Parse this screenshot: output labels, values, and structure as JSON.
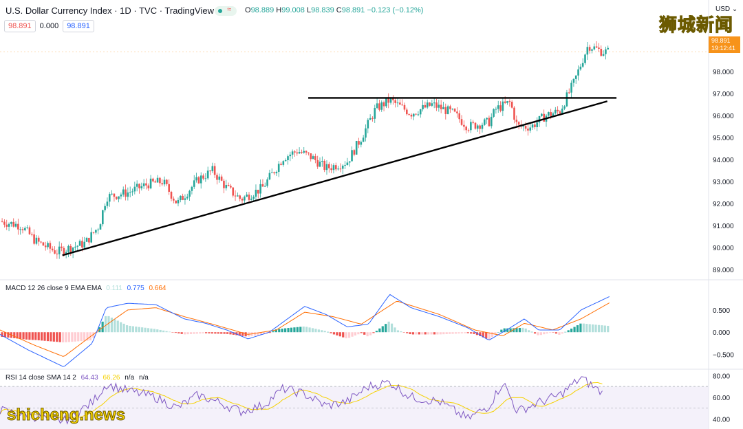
{
  "header": {
    "title": "U.S. Dollar Currency Index · 1D · TVC · TradingView",
    "ohlc": {
      "o_label": "O",
      "o": "98.889",
      "h_label": "H",
      "h": "99.008",
      "l_label": "L",
      "l": "98.839",
      "c_label": "C",
      "c": "98.891",
      "change": "−0.123 (−0.12%)"
    },
    "chips": {
      "bid": "98.891",
      "spread": "0.000",
      "ask": "98.891"
    },
    "currency": "USD",
    "price_tag": {
      "price": "98.891",
      "countdown": "19:12:41"
    }
  },
  "watermarks": {
    "top_right": "狮城新闻",
    "bottom_left": "shicheng.news"
  },
  "macd_label": {
    "name": "MACD 12 26 close 9 EMA EMA",
    "hist": "0.111",
    "macd": "0.775",
    "signal": "0.664"
  },
  "rsi_label": {
    "name": "RSI 14 close SMA 14 2",
    "rsi": "64.43",
    "sma": "66.26",
    "na1": "n/a",
    "na2": "n/a"
  },
  "colors": {
    "up": "#26a69a",
    "down": "#ef5350",
    "macd": "#2962ff",
    "signal": "#ff6d00",
    "rsi": "#7e57c2",
    "rsi_sma": "#f5d100",
    "price_tag": "#f7931a"
  },
  "chart_data": [
    {
      "type": "candlestick",
      "price_axis": {
        "ticks": [
          "98.000",
          "97.000",
          "96.000",
          "95.000",
          "94.000",
          "93.000",
          "92.000",
          "91.000",
          "90.000",
          "89.000"
        ],
        "range": [
          88.6,
          100.0
        ]
      },
      "drawn_lines": [
        {
          "kind": "horizontal resistance",
          "from": [
            0.435,
            96.8
          ],
          "to": [
            0.87,
            96.8
          ]
        },
        {
          "kind": "rising support",
          "from": [
            0.088,
            89.65
          ],
          "to": [
            0.857,
            96.65
          ]
        }
      ],
      "anchors": [
        {
          "x": 0.0,
          "y": 91.2
        },
        {
          "x": 0.03,
          "y": 91.0
        },
        {
          "x": 0.05,
          "y": 90.3
        },
        {
          "x": 0.08,
          "y": 89.8
        },
        {
          "x": 0.12,
          "y": 90.2
        },
        {
          "x": 0.14,
          "y": 91.0
        },
        {
          "x": 0.15,
          "y": 92.3
        },
        {
          "x": 0.18,
          "y": 92.5
        },
        {
          "x": 0.21,
          "y": 92.9
        },
        {
          "x": 0.23,
          "y": 93.0
        },
        {
          "x": 0.25,
          "y": 92.0
        },
        {
          "x": 0.28,
          "y": 93.1
        },
        {
          "x": 0.3,
          "y": 93.5
        },
        {
          "x": 0.32,
          "y": 92.7
        },
        {
          "x": 0.34,
          "y": 92.2
        },
        {
          "x": 0.37,
          "y": 92.7
        },
        {
          "x": 0.4,
          "y": 94.1
        },
        {
          "x": 0.42,
          "y": 94.4
        },
        {
          "x": 0.44,
          "y": 94.1
        },
        {
          "x": 0.46,
          "y": 93.6
        },
        {
          "x": 0.49,
          "y": 93.9
        },
        {
          "x": 0.51,
          "y": 95.0
        },
        {
          "x": 0.53,
          "y": 96.3
        },
        {
          "x": 0.55,
          "y": 96.7
        },
        {
          "x": 0.58,
          "y": 96.1
        },
        {
          "x": 0.61,
          "y": 96.5
        },
        {
          "x": 0.64,
          "y": 96.1
        },
        {
          "x": 0.66,
          "y": 95.5
        },
        {
          "x": 0.69,
          "y": 95.7
        },
        {
          "x": 0.7,
          "y": 96.3
        },
        {
          "x": 0.72,
          "y": 96.6
        },
        {
          "x": 0.73,
          "y": 95.5
        },
        {
          "x": 0.75,
          "y": 95.5
        },
        {
          "x": 0.77,
          "y": 96.0
        },
        {
          "x": 0.79,
          "y": 96.2
        },
        {
          "x": 0.81,
          "y": 97.5
        },
        {
          "x": 0.83,
          "y": 99.2
        },
        {
          "x": 0.85,
          "y": 98.9
        }
      ]
    },
    {
      "type": "macd",
      "axis_ticks": [
        "0.500",
        "0.000",
        "−0.500"
      ],
      "range": [
        -0.8,
        1.1
      ],
      "macd_anchors": [
        {
          "x": 0.0,
          "y": -0.05
        },
        {
          "x": 0.04,
          "y": -0.4
        },
        {
          "x": 0.09,
          "y": -0.78
        },
        {
          "x": 0.13,
          "y": -0.25
        },
        {
          "x": 0.15,
          "y": 0.55
        },
        {
          "x": 0.18,
          "y": 0.65
        },
        {
          "x": 0.22,
          "y": 0.62
        },
        {
          "x": 0.26,
          "y": 0.3
        },
        {
          "x": 0.29,
          "y": 0.2
        },
        {
          "x": 0.32,
          "y": 0.05
        },
        {
          "x": 0.35,
          "y": -0.15
        },
        {
          "x": 0.38,
          "y": 0.0
        },
        {
          "x": 0.41,
          "y": 0.35
        },
        {
          "x": 0.43,
          "y": 0.58
        },
        {
          "x": 0.46,
          "y": 0.4
        },
        {
          "x": 0.49,
          "y": 0.12
        },
        {
          "x": 0.52,
          "y": 0.18
        },
        {
          "x": 0.55,
          "y": 0.85
        },
        {
          "x": 0.58,
          "y": 0.55
        },
        {
          "x": 0.62,
          "y": 0.35
        },
        {
          "x": 0.66,
          "y": 0.1
        },
        {
          "x": 0.69,
          "y": -0.18
        },
        {
          "x": 0.72,
          "y": 0.1
        },
        {
          "x": 0.74,
          "y": 0.3
        },
        {
          "x": 0.76,
          "y": 0.05
        },
        {
          "x": 0.79,
          "y": 0.05
        },
        {
          "x": 0.82,
          "y": 0.5
        },
        {
          "x": 0.86,
          "y": 0.8
        }
      ],
      "signal_anchors": [
        {
          "x": 0.0,
          "y": 0.05
        },
        {
          "x": 0.05,
          "y": -0.3
        },
        {
          "x": 0.09,
          "y": -0.55
        },
        {
          "x": 0.14,
          "y": 0.05
        },
        {
          "x": 0.18,
          "y": 0.5
        },
        {
          "x": 0.22,
          "y": 0.55
        },
        {
          "x": 0.26,
          "y": 0.35
        },
        {
          "x": 0.3,
          "y": 0.18
        },
        {
          "x": 0.35,
          "y": -0.05
        },
        {
          "x": 0.39,
          "y": 0.05
        },
        {
          "x": 0.43,
          "y": 0.45
        },
        {
          "x": 0.47,
          "y": 0.35
        },
        {
          "x": 0.51,
          "y": 0.18
        },
        {
          "x": 0.56,
          "y": 0.7
        },
        {
          "x": 0.62,
          "y": 0.4
        },
        {
          "x": 0.67,
          "y": 0.05
        },
        {
          "x": 0.71,
          "y": -0.08
        },
        {
          "x": 0.74,
          "y": 0.2
        },
        {
          "x": 0.78,
          "y": 0.05
        },
        {
          "x": 0.82,
          "y": 0.3
        },
        {
          "x": 0.86,
          "y": 0.66
        }
      ]
    },
    {
      "type": "rsi",
      "axis_ticks": [
        "80.00",
        "60.00",
        "40.00"
      ],
      "range": [
        32,
        84
      ],
      "band": [
        30,
        70
      ],
      "rsi_anchors": [
        {
          "x": 0.0,
          "y": 48
        },
        {
          "x": 0.05,
          "y": 42
        },
        {
          "x": 0.09,
          "y": 38
        },
        {
          "x": 0.13,
          "y": 55
        },
        {
          "x": 0.15,
          "y": 72
        },
        {
          "x": 0.18,
          "y": 66
        },
        {
          "x": 0.22,
          "y": 60
        },
        {
          "x": 0.25,
          "y": 50
        },
        {
          "x": 0.28,
          "y": 62
        },
        {
          "x": 0.31,
          "y": 55
        },
        {
          "x": 0.34,
          "y": 47
        },
        {
          "x": 0.37,
          "y": 52
        },
        {
          "x": 0.4,
          "y": 68
        },
        {
          "x": 0.43,
          "y": 63
        },
        {
          "x": 0.46,
          "y": 52
        },
        {
          "x": 0.49,
          "y": 56
        },
        {
          "x": 0.52,
          "y": 70
        },
        {
          "x": 0.55,
          "y": 74
        },
        {
          "x": 0.58,
          "y": 60
        },
        {
          "x": 0.62,
          "y": 56
        },
        {
          "x": 0.66,
          "y": 40
        },
        {
          "x": 0.69,
          "y": 52
        },
        {
          "x": 0.71,
          "y": 74
        },
        {
          "x": 0.73,
          "y": 47
        },
        {
          "x": 0.76,
          "y": 55
        },
        {
          "x": 0.79,
          "y": 62
        },
        {
          "x": 0.82,
          "y": 78
        },
        {
          "x": 0.85,
          "y": 64
        }
      ]
    }
  ]
}
